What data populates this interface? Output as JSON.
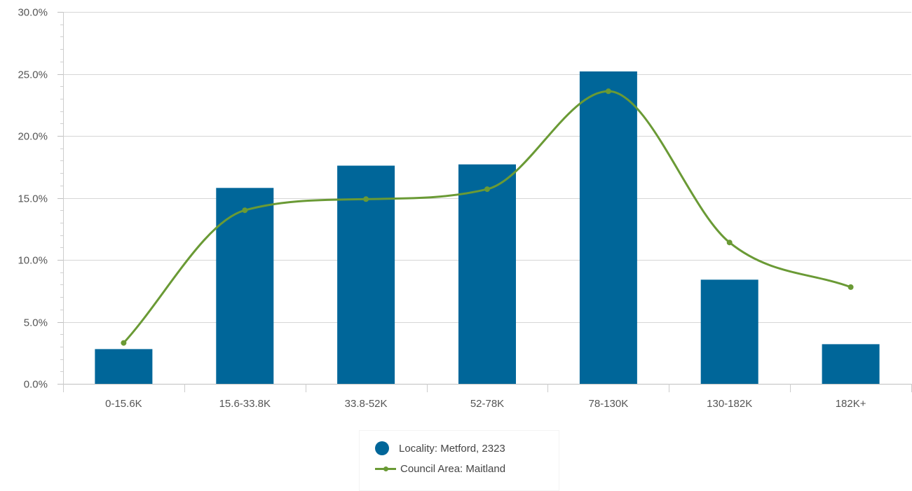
{
  "chart_data": {
    "type": "bar",
    "categories": [
      "0-15.6K",
      "15.6-33.8K",
      "33.8-52K",
      "52-78K",
      "78-130K",
      "130-182K",
      "182K+"
    ],
    "series": [
      {
        "name": "Locality: Metford, 2323",
        "type": "bar",
        "color": "#006699",
        "values": [
          2.8,
          15.8,
          17.6,
          17.7,
          25.2,
          8.4,
          3.2
        ]
      },
      {
        "name": "Council Area: Maitland",
        "type": "line",
        "smooth": true,
        "color": "#6a9a35",
        "values": [
          3.3,
          14.0,
          14.9,
          15.7,
          23.6,
          11.4,
          7.8
        ]
      }
    ],
    "ylim": [
      0,
      30
    ],
    "y_ticks": [
      "0.0%",
      "5.0%",
      "10.0%",
      "15.0%",
      "20.0%",
      "25.0%",
      "30.0%"
    ],
    "grid": true,
    "legend_position": "bottom"
  }
}
